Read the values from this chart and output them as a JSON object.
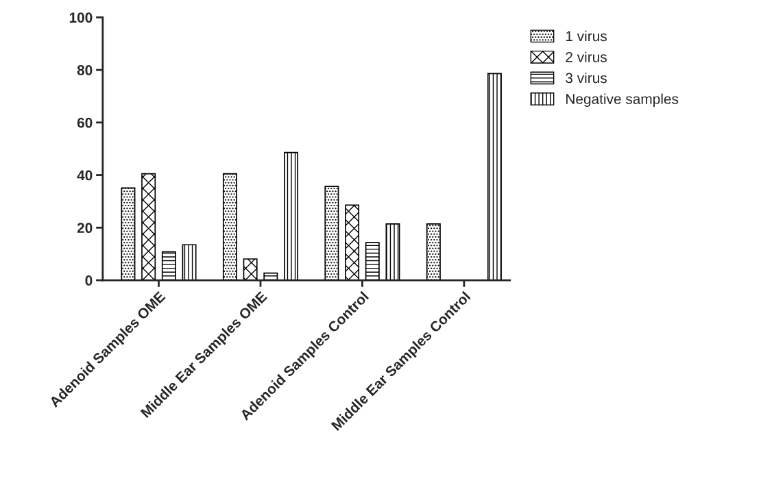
{
  "chart_data": {
    "type": "bar",
    "categories": [
      "Adenoid Samples OME",
      "Middle Ear Samples OME",
      "Adenoid Samples Control",
      "Middle Ear Samples Control"
    ],
    "series": [
      {
        "name": "1 virus",
        "color": "#000000",
        "values": [
          35.1,
          40.5,
          35.7,
          21.4
        ]
      },
      {
        "name": "2 virus",
        "color": "#000000",
        "values": [
          40.5,
          8.1,
          28.6,
          0
        ]
      },
      {
        "name": "3 virus",
        "color": "#000000",
        "values": [
          10.8,
          2.7,
          14.3,
          0
        ]
      },
      {
        "name": "Negative samples",
        "color": "#000000",
        "values": [
          13.5,
          48.6,
          21.4,
          78.6
        ]
      }
    ],
    "ylim": [
      0,
      100
    ],
    "yticks": [
      0,
      20,
      40,
      60,
      80,
      100
    ],
    "grid": false,
    "legend": "top right"
  }
}
